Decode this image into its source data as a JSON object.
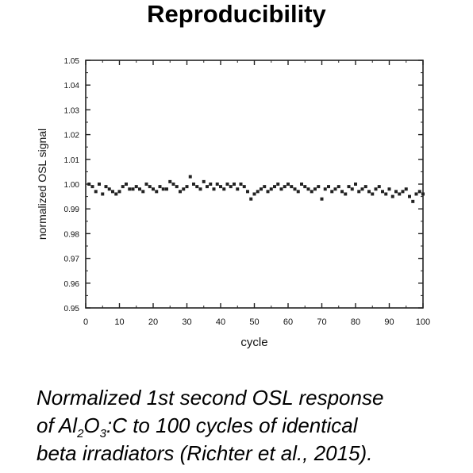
{
  "slide": {
    "title": "Reproducibility"
  },
  "caption": {
    "line1": "Normalized 1st second OSL response",
    "line2_pre": "of Al",
    "sub1": "2",
    "line2_mid": "O",
    "sub2": "3",
    "line2_post": ":C to 100 cycles of identical",
    "line3": "beta irradiators (Richter et al., 2015)."
  },
  "chart_data": {
    "type": "scatter",
    "title": "",
    "xlabel": "cycle",
    "ylabel": "normalized OSL signal",
    "xlim": [
      0,
      100
    ],
    "ylim": [
      0.95,
      1.05
    ],
    "x_ticks": [
      0,
      10,
      20,
      30,
      40,
      50,
      60,
      70,
      80,
      90,
      100
    ],
    "x_tick_labels": [
      "0",
      "10",
      "20",
      "30",
      "40",
      "50",
      "60",
      "70",
      "80",
      "90",
      "100"
    ],
    "y_ticks": [
      0.95,
      0.96,
      0.97,
      0.98,
      0.99,
      1.0,
      1.01,
      1.02,
      1.03,
      1.04,
      1.05
    ],
    "y_tick_labels": [
      "0.95",
      "0.96",
      "0.97",
      "0.98",
      "0.99",
      "1.00",
      "1.01",
      "1.02",
      "1.03",
      "1.04",
      "1.05"
    ],
    "grid": false,
    "series": [
      {
        "marker_color": "#222222",
        "x": [
          1,
          2,
          3,
          4,
          5,
          6,
          7,
          8,
          9,
          10,
          11,
          12,
          13,
          14,
          15,
          16,
          17,
          18,
          19,
          20,
          21,
          22,
          23,
          24,
          25,
          26,
          27,
          28,
          29,
          30,
          31,
          32,
          33,
          34,
          35,
          36,
          37,
          38,
          39,
          40,
          41,
          42,
          43,
          44,
          45,
          46,
          47,
          48,
          49,
          50,
          51,
          52,
          53,
          54,
          55,
          56,
          57,
          58,
          59,
          60,
          61,
          62,
          63,
          64,
          65,
          66,
          67,
          68,
          69,
          70,
          71,
          72,
          73,
          74,
          75,
          76,
          77,
          78,
          79,
          80,
          81,
          82,
          83,
          84,
          85,
          86,
          87,
          88,
          89,
          90,
          91,
          92,
          93,
          94,
          95,
          96,
          97,
          98,
          99,
          100
        ],
        "y": [
          1.0,
          0.999,
          0.997,
          1.0,
          0.996,
          0.999,
          0.998,
          0.997,
          0.996,
          0.997,
          0.999,
          1.0,
          0.998,
          0.998,
          0.999,
          0.998,
          0.997,
          1.0,
          0.999,
          0.998,
          0.997,
          0.999,
          0.998,
          0.998,
          1.001,
          1.0,
          0.999,
          0.997,
          0.998,
          0.999,
          1.003,
          1.0,
          0.999,
          0.998,
          1.001,
          0.999,
          1.0,
          0.998,
          1.0,
          0.999,
          0.998,
          1.0,
          0.999,
          1.0,
          0.998,
          1.0,
          0.999,
          0.997,
          0.994,
          0.996,
          0.997,
          0.998,
          0.999,
          0.997,
          0.998,
          0.999,
          1.0,
          0.998,
          0.999,
          1.0,
          0.999,
          0.998,
          0.997,
          1.0,
          0.999,
          0.998,
          0.997,
          0.998,
          0.999,
          0.994,
          0.998,
          0.999,
          0.997,
          0.998,
          0.999,
          0.997,
          0.996,
          0.999,
          0.998,
          1.0,
          0.997,
          0.998,
          0.999,
          0.997,
          0.996,
          0.998,
          0.999,
          0.997,
          0.996,
          0.998,
          0.995,
          0.997,
          0.996,
          0.997,
          0.998,
          0.995,
          0.993,
          0.996,
          0.997,
          0.996
        ]
      }
    ]
  }
}
